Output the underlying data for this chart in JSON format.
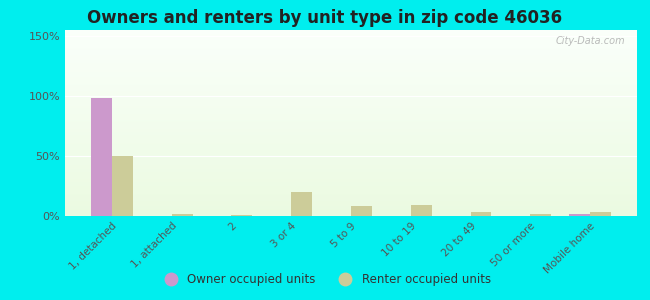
{
  "title": "Owners and renters by unit type in zip code 46036",
  "categories": [
    "1, detached",
    "1, attached",
    "2",
    "3 or 4",
    "5 to 9",
    "10 to 19",
    "20 to 49",
    "50 or more",
    "Mobile home"
  ],
  "owner_values": [
    98,
    0,
    0,
    0,
    0,
    0,
    0,
    0,
    2
  ],
  "renter_values": [
    50,
    2,
    1,
    20,
    8,
    9,
    3,
    2,
    3
  ],
  "owner_color": "#cc99cc",
  "renter_color": "#cccc99",
  "outer_bg": "#00eeee",
  "ylim": [
    0,
    155
  ],
  "yticks": [
    0,
    50,
    100,
    150
  ],
  "ytick_labels": [
    "0%",
    "50%",
    "100%",
    "150%"
  ],
  "bar_width": 0.35,
  "title_fontsize": 12,
  "legend_owner": "Owner occupied units",
  "legend_renter": "Renter occupied units",
  "watermark": "City-Data.com"
}
